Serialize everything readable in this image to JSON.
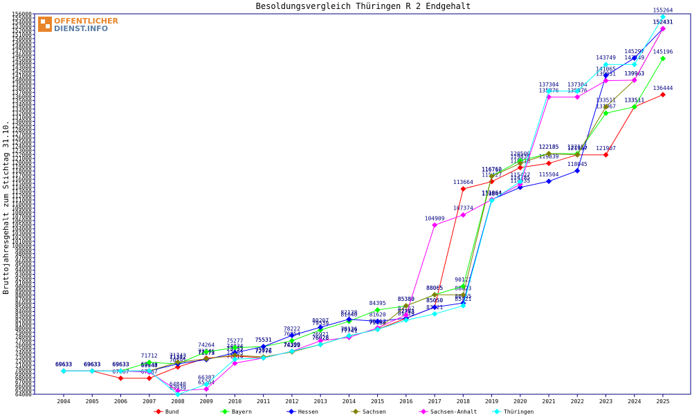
{
  "logo": {
    "line1": "OFFENTLICHER",
    "line2": "DIENST.INFO",
    "color": "#5a7fa6"
  },
  "chart_data": {
    "type": "line",
    "title": "Besoldungsvergleich Thüringen R 2 Endgehalt",
    "ylabel": "Bruttojahresgehalt zum Stichtag 31.10.",
    "xlabel": "",
    "ylim": [
      64000,
      156000
    ],
    "ytick_step": 1000,
    "grid": false,
    "legend_position": "bottom",
    "x": [
      "2004",
      "2005",
      "2006",
      "2007",
      "2008",
      "2009",
      "2010",
      "2011",
      "2012",
      "2013",
      "2014",
      "2015",
      "2016",
      "2017",
      "2018",
      "2019",
      "2020",
      "2021",
      "2022",
      "2023",
      "2024",
      "2025"
    ],
    "series": [
      {
        "name": "Bund",
        "color": "#ff0000",
        "values": [
          69633,
          69633,
          67867,
          67867,
          70595,
          72746,
          73257,
          72776,
          74399,
          76028,
          78136,
          79684,
          82383,
          85050,
          113664,
          115427,
          118818,
          119839,
          121907,
          121907,
          133511,
          136444
        ]
      },
      {
        "name": "Bayern",
        "color": "#00ff00",
        "values": [
          69633,
          69633,
          69633,
          71712,
          71342,
          74264,
          75277,
          75531,
          76954,
          79539,
          81640,
          84395,
          85380,
          88065,
          90122,
          116762,
          120500,
          122185,
          122185,
          131967,
          133511,
          145196
        ]
      },
      {
        "name": "Hessen",
        "color": "#0000ff",
        "values": [
          69633,
          69633,
          69633,
          69633,
          71342,
          72373,
          74034,
          75531,
          78222,
          80207,
          82138,
          81620,
          82383,
          85050,
          86065,
          111064,
          114035,
          115504,
          118045,
          141065,
          145297,
          152431
        ]
      },
      {
        "name": "Sachsen",
        "color": "#808000",
        "values": [
          69633,
          69633,
          69633,
          69633,
          71743,
          72571,
          73455,
          73027,
          74220,
          76028,
          78136,
          79684,
          85383,
          88065,
          88023,
          116710,
          119839,
          122185,
          121907,
          133511,
          139963,
          152431
        ]
      },
      {
        "name": "Sachsen-Anhalt",
        "color": "#ff00ff",
        "values": [
          69633,
          69633,
          69633,
          69348,
          64840,
          65264,
          71514,
          72776,
          74399,
          76921,
          77741,
          80063,
          83162,
          104909,
          107374,
          111064,
          114785,
          135876,
          135876,
          139831,
          139963,
          152431
        ]
      },
      {
        "name": "Thüringen",
        "color": "#00ffff",
        "values": [
          69633,
          69633,
          69633,
          69633,
          63939,
          66387,
          72463,
          72776,
          74399,
          76028,
          78136,
          79684,
          81919,
          83421,
          85421,
          110843,
          115427,
          137304,
          137304,
          143749,
          143749,
          155264
        ]
      }
    ]
  }
}
